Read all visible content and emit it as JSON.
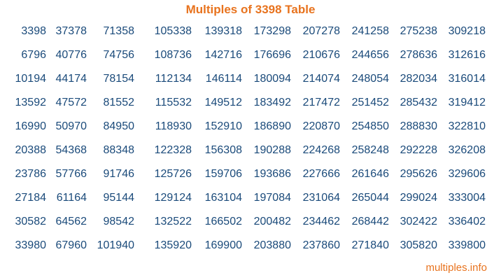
{
  "title": "Multiples of 3398 Table",
  "footer": "multiples.info",
  "colors": {
    "title": "#e8731e",
    "numbers": "#1a4a7a",
    "footer": "#e8731e"
  },
  "rows": [
    [
      "3398",
      "37378",
      "71358",
      "105338",
      "139318",
      "173298",
      "207278",
      "241258",
      "275238",
      "309218"
    ],
    [
      "6796",
      "40776",
      "74756",
      "108736",
      "142716",
      "176696",
      "210676",
      "244656",
      "278636",
      "312616"
    ],
    [
      "10194",
      "44174",
      "78154",
      "112134",
      "146114",
      "180094",
      "214074",
      "248054",
      "282034",
      "316014"
    ],
    [
      "13592",
      "47572",
      "81552",
      "115532",
      "149512",
      "183492",
      "217472",
      "251452",
      "285432",
      "319412"
    ],
    [
      "16990",
      "50970",
      "84950",
      "118930",
      "152910",
      "186890",
      "220870",
      "254850",
      "288830",
      "322810"
    ],
    [
      "20388",
      "54368",
      "88348",
      "122328",
      "156308",
      "190288",
      "224268",
      "258248",
      "292228",
      "326208"
    ],
    [
      "23786",
      "57766",
      "91746",
      "125726",
      "159706",
      "193686",
      "227666",
      "261646",
      "295626",
      "329606"
    ],
    [
      "27184",
      "61164",
      "95144",
      "129124",
      "163104",
      "197084",
      "231064",
      "265044",
      "299024",
      "333004"
    ],
    [
      "30582",
      "64562",
      "98542",
      "132522",
      "166502",
      "200482",
      "234462",
      "268442",
      "302422",
      "336402"
    ],
    [
      "33980",
      "67960",
      "101940",
      "135920",
      "169900",
      "203880",
      "237860",
      "271840",
      "305820",
      "339800"
    ]
  ]
}
